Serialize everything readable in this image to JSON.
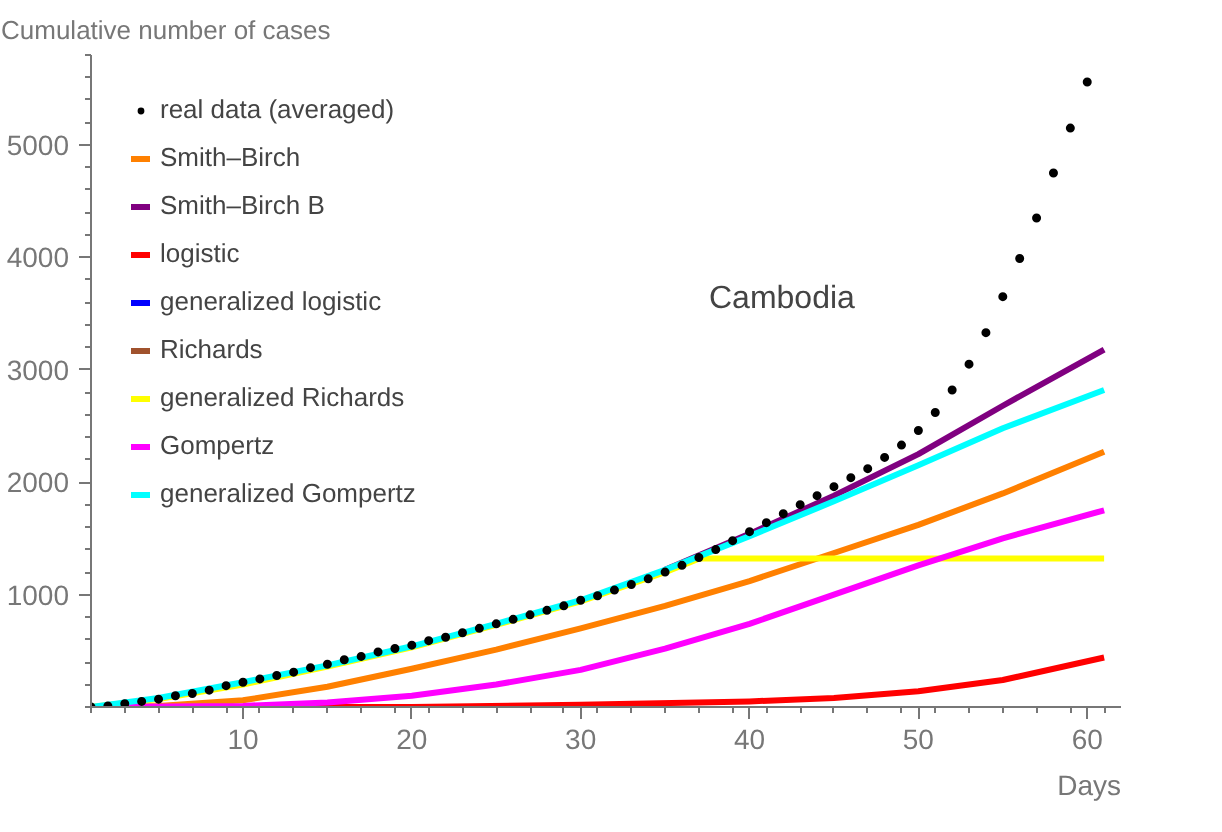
{
  "chart_data": {
    "type": "line",
    "ylabel": "Cumulative number of cases",
    "xlabel": "Days",
    "annotations": [
      "Cambodia"
    ],
    "xlim": [
      1,
      62
    ],
    "ylim": [
      0,
      5800
    ],
    "xticks": [
      10,
      20,
      30,
      40,
      50,
      60
    ],
    "yticks": [
      1000,
      2000,
      3000,
      4000,
      5000
    ],
    "grid": false,
    "legend": "top left",
    "line_style": "solid",
    "marker": "none",
    "series": [
      {
        "name": "real data (averaged)",
        "type": "scatter",
        "marker": "circle",
        "color": "#000000",
        "x": [
          1,
          2,
          3,
          4,
          5,
          6,
          7,
          8,
          9,
          10,
          11,
          12,
          13,
          14,
          15,
          16,
          17,
          18,
          19,
          20,
          21,
          22,
          23,
          24,
          25,
          26,
          27,
          28,
          29,
          30,
          31,
          32,
          33,
          34,
          35,
          36,
          37,
          38,
          39,
          40,
          41,
          42,
          43,
          44,
          45,
          46,
          47,
          48,
          49,
          50,
          51,
          52,
          53,
          54,
          55,
          56,
          57,
          58,
          59,
          60
        ],
        "values": [
          0,
          10,
          30,
          50,
          70,
          100,
          120,
          150,
          190,
          220,
          250,
          280,
          310,
          350,
          380,
          420,
          450,
          490,
          520,
          550,
          590,
          620,
          660,
          700,
          740,
          780,
          820,
          860,
          900,
          950,
          990,
          1040,
          1090,
          1140,
          1200,
          1260,
          1330,
          1400,
          1480,
          1560,
          1640,
          1720,
          1800,
          1880,
          1960,
          2040,
          2120,
          2220,
          2330,
          2460,
          2620,
          2820,
          3050,
          3330,
          3650,
          3990,
          4350,
          4750,
          5150,
          5560
        ]
      },
      {
        "name": "Smith–Birch",
        "color": "#ff8000",
        "x": [
          1,
          5,
          10,
          15,
          20,
          25,
          30,
          35,
          40,
          45,
          50,
          55,
          61
        ],
        "values": [
          0,
          10,
          60,
          180,
          340,
          510,
          700,
          900,
          1120,
          1370,
          1620,
          1900,
          2270
        ]
      },
      {
        "name": "Smith–Birch B",
        "color": "#800080",
        "x": [
          35,
          40,
          45,
          50,
          55,
          61
        ],
        "values": [
          1220,
          1540,
          1880,
          2250,
          2680,
          3180
        ]
      },
      {
        "name": "logistic",
        "color": "#ff0000",
        "x": [
          1,
          20,
          30,
          40,
          45,
          50,
          55,
          61
        ],
        "values": [
          0,
          0,
          20,
          50,
          80,
          140,
          240,
          440
        ]
      },
      {
        "name": "generalized logistic",
        "color": "#0000ff"
      },
      {
        "name": "Richards",
        "color": "#a0522d"
      },
      {
        "name": "generalized Richards",
        "color": "#ffff00",
        "x": [
          1,
          5,
          10,
          15,
          20,
          25,
          30,
          35,
          37,
          61
        ],
        "values": [
          0,
          70,
          200,
          360,
          530,
          730,
          940,
          1200,
          1320,
          1320
        ]
      },
      {
        "name": "Gompertz",
        "color": "#ff00ff",
        "x": [
          1,
          10,
          15,
          20,
          25,
          30,
          35,
          40,
          45,
          50,
          55,
          61
        ],
        "values": [
          0,
          10,
          40,
          100,
          200,
          330,
          520,
          740,
          1000,
          1260,
          1500,
          1750
        ]
      },
      {
        "name": "generalized Gompertz",
        "color": "#00ffff",
        "x": [
          1,
          5,
          10,
          15,
          20,
          25,
          30,
          35,
          40,
          45,
          50,
          55,
          61
        ],
        "values": [
          0,
          80,
          220,
          370,
          540,
          740,
          950,
          1220,
          1520,
          1830,
          2150,
          2480,
          2820
        ]
      }
    ]
  }
}
